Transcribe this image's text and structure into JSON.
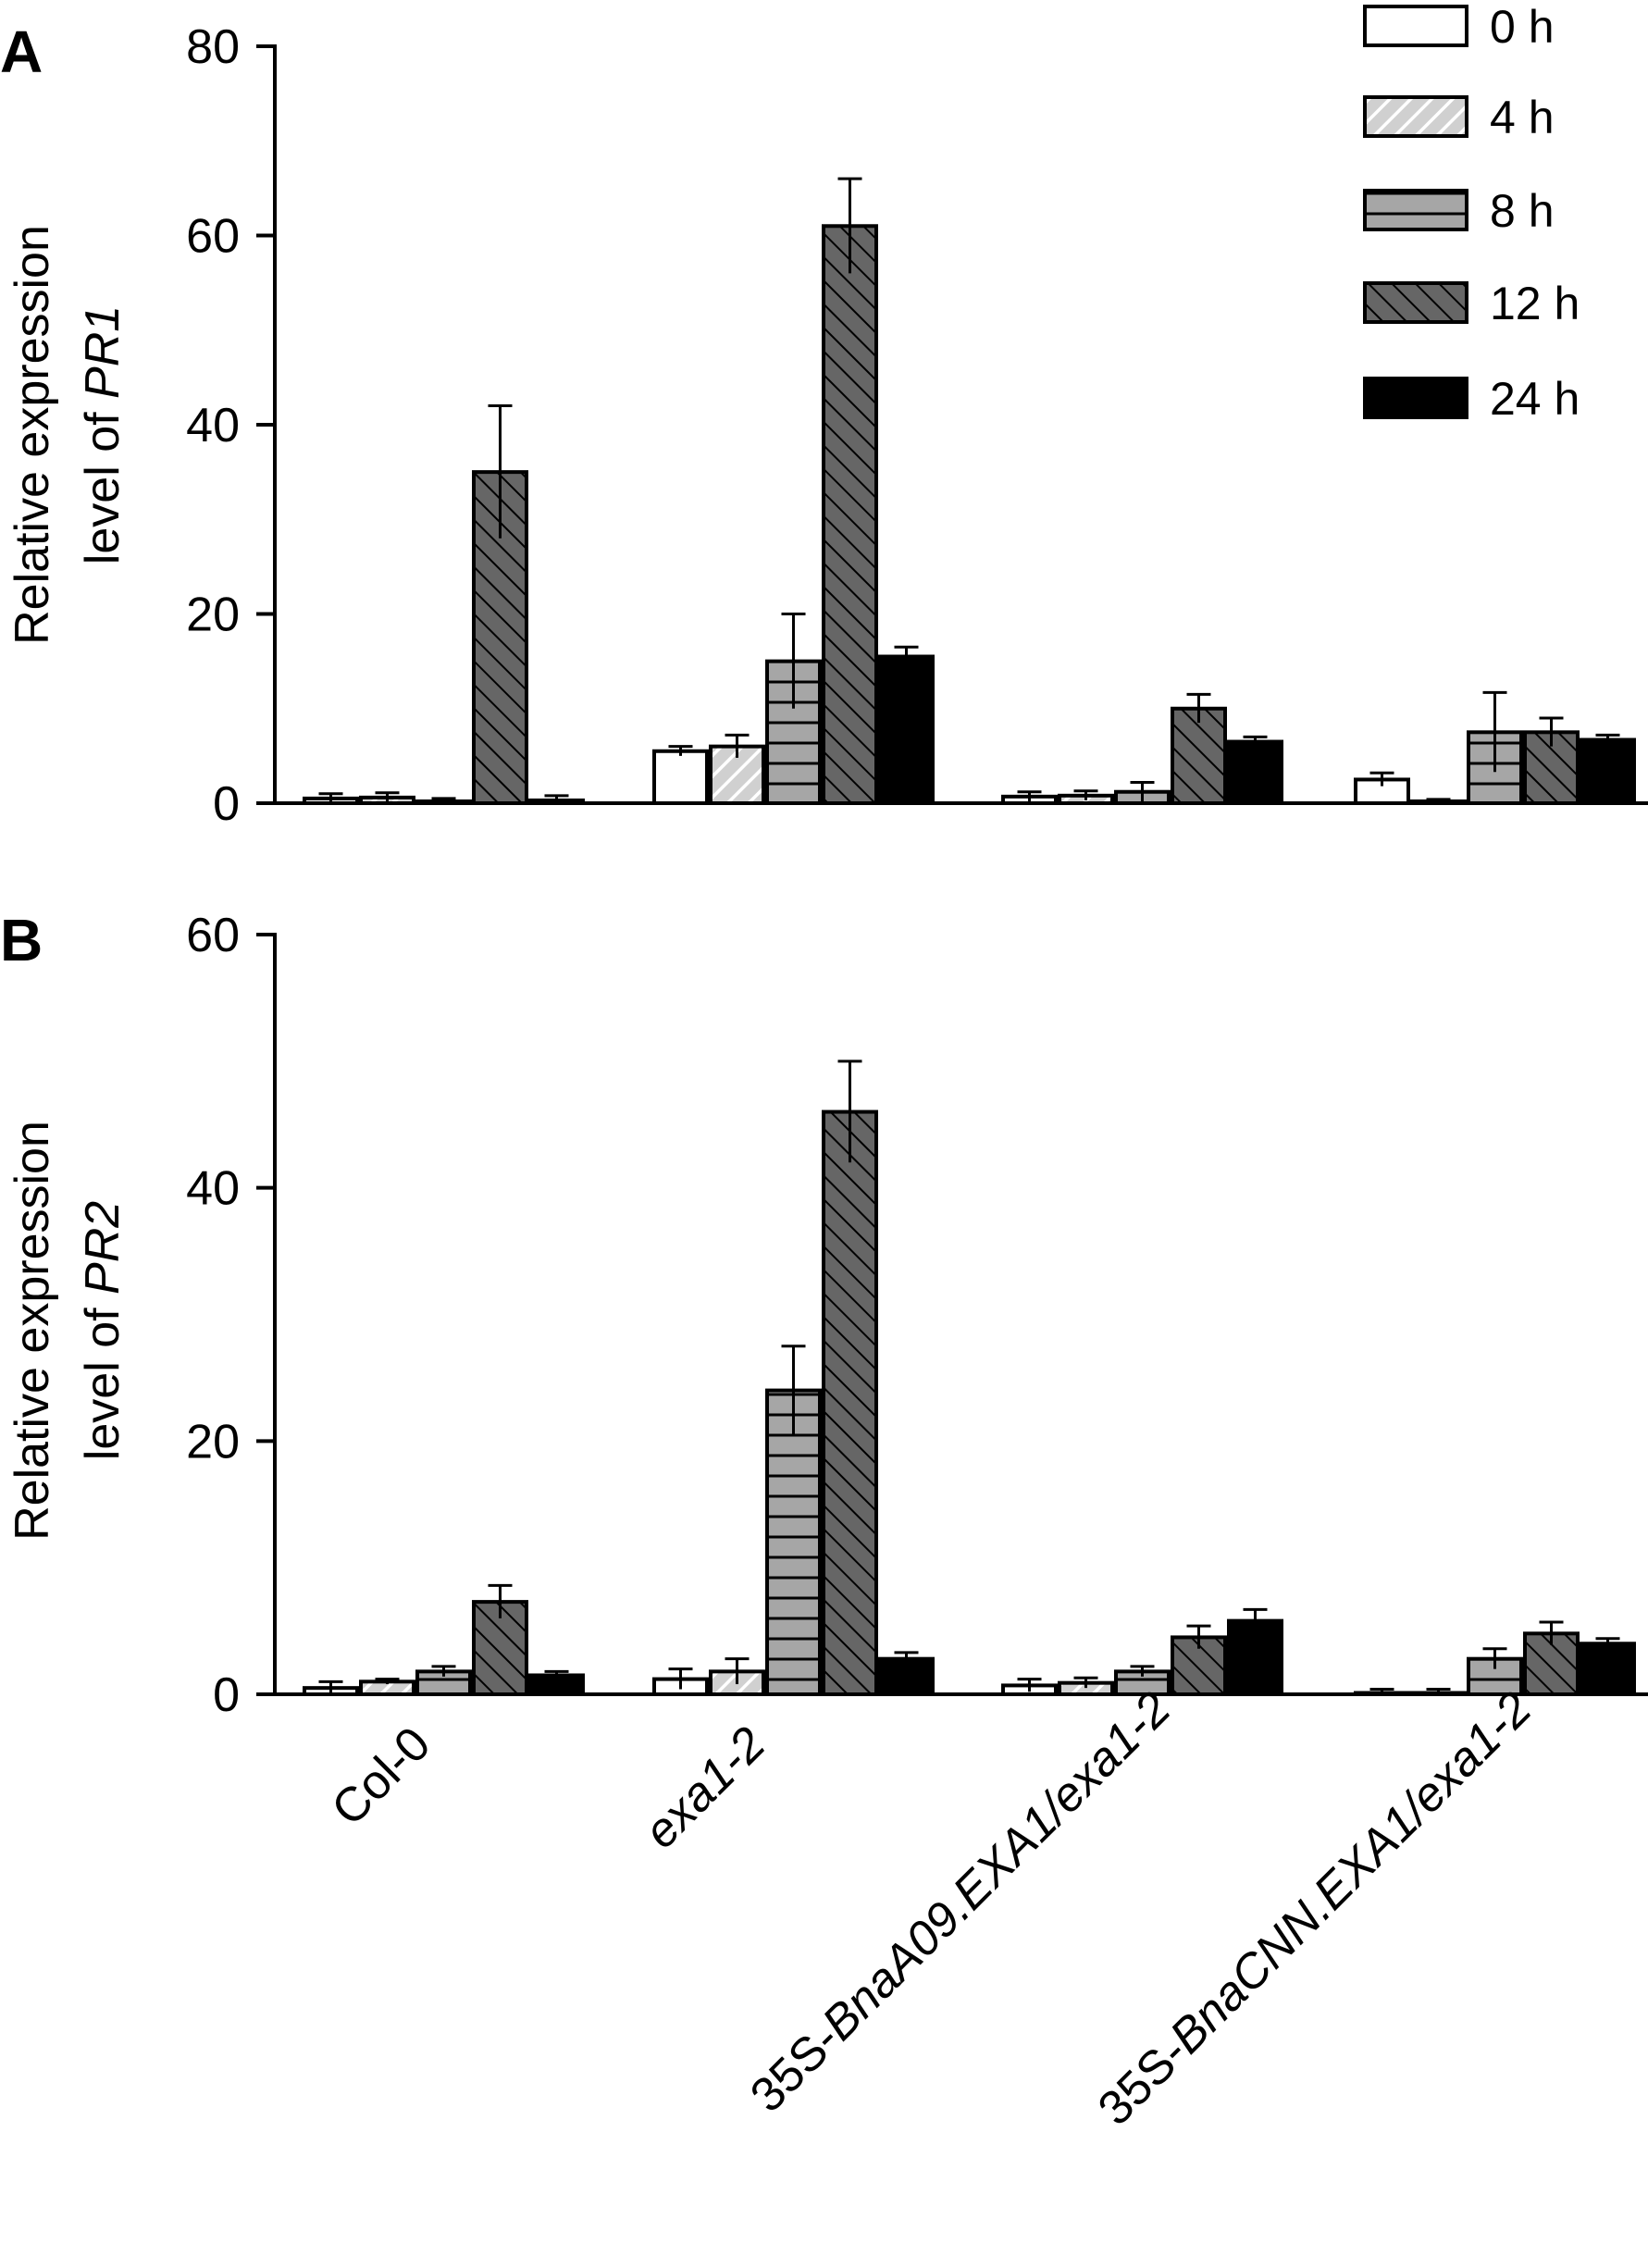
{
  "chart_data": [
    {
      "type": "bar",
      "panel_label": "A",
      "ylabel_line1": "Relative expression",
      "ylabel_line2_prefix": "level of ",
      "ylabel_gene": "PR1",
      "ylim": [
        0,
        80
      ],
      "yticks": [
        0,
        20,
        40,
        60,
        80
      ],
      "categories": [
        "Col-0",
        "exa1-2",
        "35S-BnaA09.EXA1/exa1-2",
        "35S-BnaCNN.EXA1/exa1-2"
      ],
      "series": [
        {
          "name": "0 h",
          "values": [
            0.5,
            5.5,
            0.7,
            2.5
          ],
          "errors": [
            0.5,
            0.5,
            0.5,
            0.7
          ]
        },
        {
          "name": "4 h",
          "values": [
            0.6,
            6.0,
            0.8,
            0.2
          ],
          "errors": [
            0.5,
            1.2,
            0.5,
            0.2
          ]
        },
        {
          "name": "8 h",
          "values": [
            0.2,
            15.0,
            1.2,
            7.5
          ],
          "errors": [
            0.3,
            5.0,
            1.0,
            4.2
          ]
        },
        {
          "name": "12 h",
          "values": [
            35.0,
            61.0,
            10.0,
            7.5
          ],
          "errors": [
            7.0,
            5.0,
            1.5,
            1.5
          ]
        },
        {
          "name": "24 h",
          "values": [
            0.3,
            15.5,
            6.5,
            6.7
          ],
          "errors": [
            0.5,
            1.0,
            0.5,
            0.5
          ]
        }
      ],
      "legend": "top-right",
      "grid": false
    },
    {
      "type": "bar",
      "panel_label": "B",
      "ylabel_line1": "Relative expression",
      "ylabel_line2_prefix": "level of ",
      "ylabel_gene": "PR2",
      "ylim": [
        0,
        60
      ],
      "yticks": [
        0,
        20,
        40,
        60
      ],
      "categories": [
        "Col-0",
        "exa1-2",
        "35S-BnaA09.EXA1/exa1-2",
        "35S-BnaCNN.EXA1/exa1-2"
      ],
      "x_tick_labels": [
        {
          "roman": "Col-0",
          "italic": ""
        },
        {
          "roman": "",
          "italic": "exa1-2"
        },
        {
          "roman": "35S-",
          "italic": "BnaA09.EXA1/exa1-2"
        },
        {
          "roman": "35S-",
          "italic": "BnaCNN.EXA1/exa1-2"
        }
      ],
      "series": [
        {
          "name": "0 h",
          "values": [
            0.5,
            1.2,
            0.7,
            0.1
          ],
          "errors": [
            0.5,
            0.8,
            0.5,
            0.3
          ]
        },
        {
          "name": "4 h",
          "values": [
            1.0,
            1.8,
            0.9,
            0.1
          ],
          "errors": [
            0.2,
            1.0,
            0.4,
            0.3
          ]
        },
        {
          "name": "8 h",
          "values": [
            1.8,
            24.0,
            1.8,
            2.8
          ],
          "errors": [
            0.4,
            3.5,
            0.4,
            0.8
          ]
        },
        {
          "name": "12 h",
          "values": [
            7.3,
            46.0,
            4.5,
            4.8
          ],
          "errors": [
            1.3,
            4.0,
            0.9,
            0.9
          ]
        },
        {
          "name": "24 h",
          "values": [
            1.5,
            2.8,
            5.8,
            4.0
          ],
          "errors": [
            0.3,
            0.5,
            0.9,
            0.4
          ]
        }
      ],
      "legend": "none",
      "grid": false
    }
  ],
  "legend": {
    "entries": [
      {
        "label": "0 h",
        "pattern": "white"
      },
      {
        "label": "4 h",
        "pattern": "light-gray-diagonal-up"
      },
      {
        "label": "8 h",
        "pattern": "gray-horizontal"
      },
      {
        "label": "12 h",
        "pattern": "dark-gray-diagonal-down"
      },
      {
        "label": "24 h",
        "pattern": "black"
      }
    ]
  },
  "colors": {
    "axis": "#000000",
    "light_gray": "#d0d0d0",
    "mid_gray": "#a6a6a6",
    "dark_gray": "#666666",
    "black": "#000000",
    "white": "#ffffff"
  }
}
